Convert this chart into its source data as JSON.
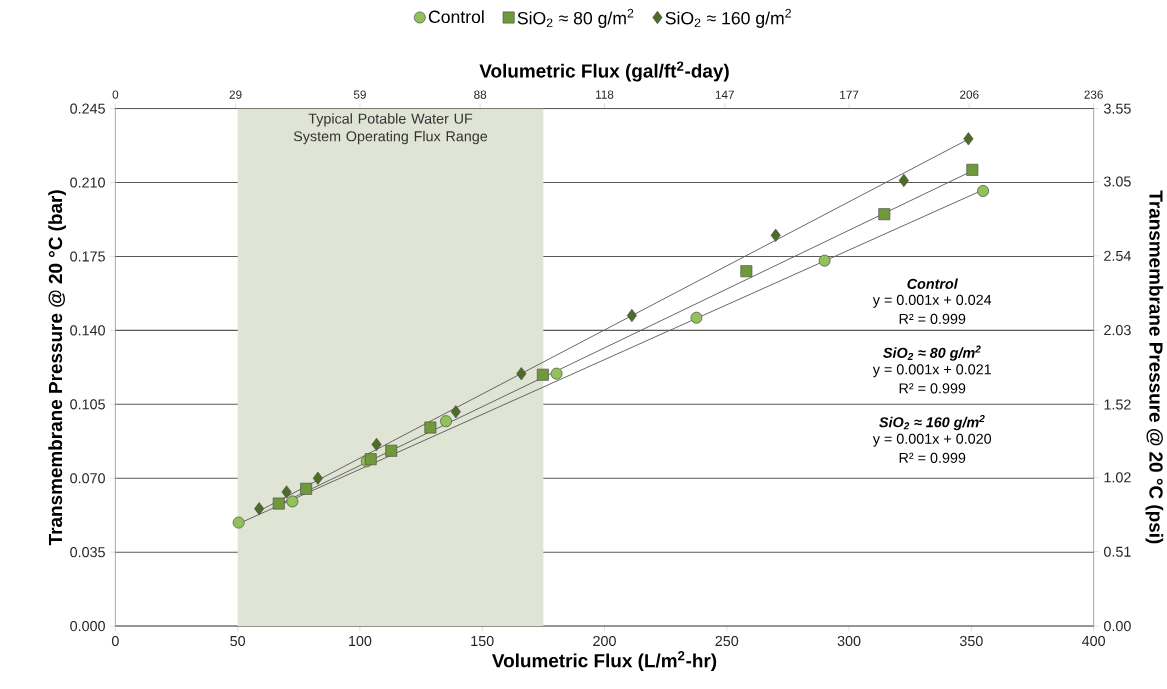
{
  "chart_data": {
    "type": "scatter",
    "xlabel": "Volumetric Flux (L/m$^{2}$-hr)",
    "ylabel": "Transmembrane Pressure @ 20 °C (bar)",
    "y2label": "Transmembrane Pressure @ 20 °C (psi)",
    "x2label": "Volumetric Flux (gal/ft$^{2}$-day)",
    "xlim": [
      0,
      400
    ],
    "xticks": [
      0,
      50,
      100,
      150,
      200,
      250,
      300,
      350,
      400
    ],
    "ylim": [
      0,
      0.245
    ],
    "yticks": [
      {
        "value": 0,
        "label": "0.000"
      },
      0.035,
      {
        "value": 0.07,
        "label": "0.070"
      },
      0.105,
      {
        "value": 0.14,
        "label": "0.140"
      },
      0.175,
      {
        "value": 0.21,
        "label": "0.210"
      },
      0.245
    ],
    "x2lim": [
      0,
      236
    ],
    "x2ticks": [
      0,
      29,
      59,
      88,
      118,
      147,
      177,
      206,
      236
    ],
    "y2lim": [
      0,
      3.55
    ],
    "y2ticks": [
      {
        "value": 0,
        "label": "0.00"
      },
      0.51,
      1.02,
      1.52,
      2.03,
      2.54,
      3.05,
      3.55
    ],
    "grid": "y",
    "legend": "top",
    "bands": [
      {
        "axis": "x",
        "from": 50,
        "to": 175,
        "label": "Typical Potable Water UF System Operating Flux Range",
        "color": "#e0e4d5"
      }
    ],
    "annotations": [
      "Control",
      "y = 0.001x + 0.024",
      "R² = 0.999",
      "SiO$_{2}$ ≈ 80 g/m$^{2}$",
      "y = 0.001x + 0.021",
      "R² = 0.999",
      "SiO$_{2}$ ≈ 160 g/m$^{2}$",
      "y = 0.001x + 0.020",
      "R² = 0.999"
    ],
    "series": [
      {
        "name": "Control",
        "marker": "circle",
        "color": "#92c05a",
        "x": [
          50.4,
          72.4,
          102.8,
          135.2,
          180.4,
          237.6,
          290.0,
          354.8
        ],
        "values": [
          0.049,
          0.059,
          0.078,
          0.097,
          0.1195,
          0.146,
          0.173,
          0.206
        ]
      },
      {
        "name": "SiO$_{2}$ ≈ 80 g/m$^{2}$",
        "marker": "square",
        "color": "#6f9a3a",
        "x": [
          66.8,
          78.0,
          104.4,
          112.8,
          128.8,
          174.8,
          258.0,
          314.4,
          350.4
        ],
        "values": [
          0.058,
          0.065,
          0.079,
          0.083,
          0.094,
          0.119,
          0.168,
          0.195,
          0.216
        ]
      },
      {
        "name": "SiO$_{2}$ ≈ 160 g/m$^{2}$",
        "marker": "diamond",
        "color": "#4e6b28",
        "x": [
          58.8,
          70.0,
          82.8,
          106.8,
          139.2,
          166.0,
          211.2,
          270.0,
          322.4,
          348.8
        ],
        "values": [
          0.0556,
          0.0635,
          0.07,
          0.086,
          0.1015,
          0.1195,
          0.147,
          0.185,
          0.211,
          0.2307
        ]
      },
      {
        "type": "line",
        "marker": "none",
        "color": "#595959",
        "x": [
          50.4,
          354.8
        ],
        "values": [
          0.0485,
          0.2065
        ]
      },
      {
        "type": "line",
        "marker": "none",
        "color": "#595959",
        "x": [
          66.8,
          350.4
        ],
        "values": [
          0.0575,
          0.2155
        ]
      },
      {
        "type": "line",
        "marker": "none",
        "color": "#595959",
        "x": [
          58.8,
          348.8
        ],
        "values": [
          0.0545,
          0.2305
        ]
      }
    ]
  }
}
